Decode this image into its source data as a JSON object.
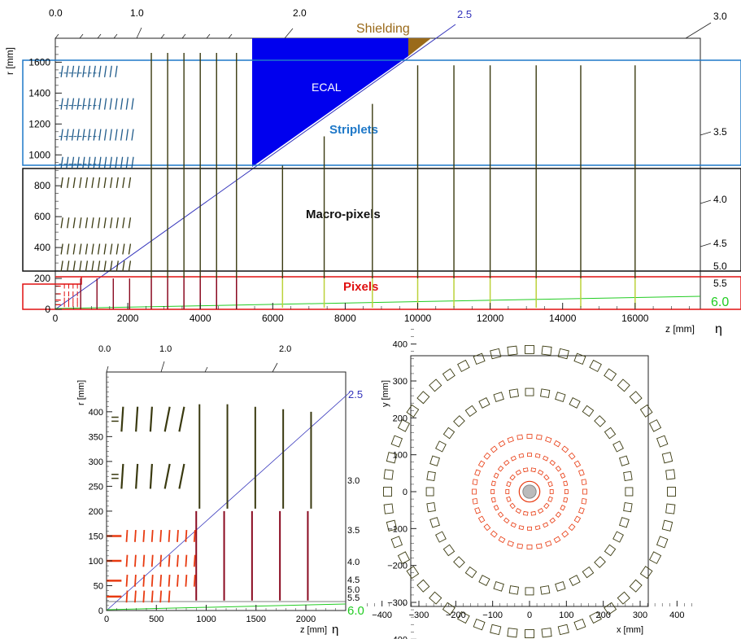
{
  "top": {
    "ylabel": "r [mm]",
    "xlabel": "z [mm]",
    "eta_symbol": "η",
    "y_ticks": [
      "0",
      "200",
      "400",
      "600",
      "800",
      "1000",
      "1200",
      "1400",
      "1600"
    ],
    "x_ticks": [
      "0",
      "2000",
      "4000",
      "6000",
      "8000",
      "10000",
      "12000",
      "14000",
      "16000"
    ],
    "eta_top_labels": [
      "0.0",
      "1.0",
      "2.0"
    ],
    "eta_right_labels": [
      "3.0",
      "3.5",
      "4.0",
      "4.5",
      "5.0",
      "5.5"
    ],
    "eta_line_label": "2.5",
    "eta_forward_label": "6.0",
    "ecal_label": "ECAL",
    "shielding_label": "Shielding",
    "striplets_label": "Striplets",
    "macro_label": "Macro-pixels",
    "pixels_label": "Pixels",
    "colors": {
      "ecal": "#0000ee",
      "shielding": "#9a6a1a",
      "striplets": "#1e78c8",
      "macro": "#111111",
      "pixels": "#e01010",
      "eta_line": "#3333bb",
      "forward": "#22cc22",
      "detector_dark": "#3a3a10",
      "detector_pixel": "#8a0a20"
    }
  },
  "bottom_left": {
    "ylabel": "r [mm]",
    "xlabel": "z [mm]",
    "eta_symbol": "η",
    "y_ticks": [
      "0",
      "50",
      "100",
      "150",
      "200",
      "250",
      "300",
      "350",
      "400"
    ],
    "x_ticks": [
      "0",
      "500",
      "1000",
      "1500",
      "2000"
    ],
    "eta_top_labels": [
      "0.0",
      "1.0",
      "2.0"
    ],
    "eta_right_labels": [
      "3.0",
      "3.5",
      "4.0",
      "4.5",
      "5.0",
      "5.5"
    ],
    "eta_line_label": "2.5",
    "eta_forward_label": "6.0"
  },
  "bottom_right": {
    "ylabel": "y [mm]",
    "xlabel": "x [mm]",
    "ticks": [
      "−400",
      "−300",
      "−200",
      "−100",
      "0",
      "100",
      "200",
      "300",
      "400"
    ],
    "colors": {
      "outer": "#3a3a10",
      "inner": "#e83a10"
    }
  }
}
